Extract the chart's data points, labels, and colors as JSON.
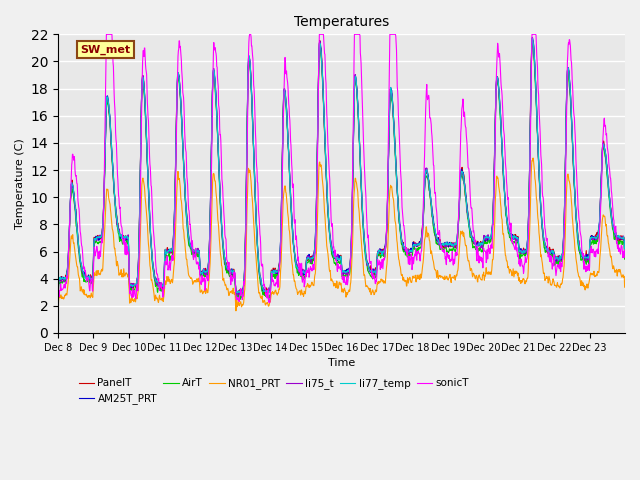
{
  "title": "Temperatures",
  "xlabel": "Time",
  "ylabel": "Temperature (C)",
  "ylim": [
    0,
    22
  ],
  "yticks": [
    0,
    2,
    4,
    6,
    8,
    10,
    12,
    14,
    16,
    18,
    20,
    22
  ],
  "series_colors": {
    "PanelT": "#cc0000",
    "AM25T_PRT": "#0000cc",
    "AirT": "#00cc00",
    "NR01_PRT": "#ff9900",
    "li75_t": "#9900cc",
    "li77_temp": "#00cccc",
    "sonicT": "#ff00ff"
  },
  "annotation_text": "SW_met",
  "plot_bg_color": "#e8e8e8",
  "grid_color": "#ffffff",
  "linewidth": 0.8,
  "x_tick_labels": [
    "Dec 8",
    "Dec 9",
    "Dec 10",
    "Dec 11",
    "Dec 12",
    "Dec 13",
    "Dec 14",
    "Dec 15",
    "Dec 16",
    "Dec 17",
    "Dec 18",
    "Dec 19",
    "Dec 20",
    "Dec 21",
    "Dec 22",
    "Dec 23"
  ],
  "num_days": 16,
  "pts_per_day": 96,
  "figsize": [
    6.4,
    4.8
  ],
  "dpi": 100
}
